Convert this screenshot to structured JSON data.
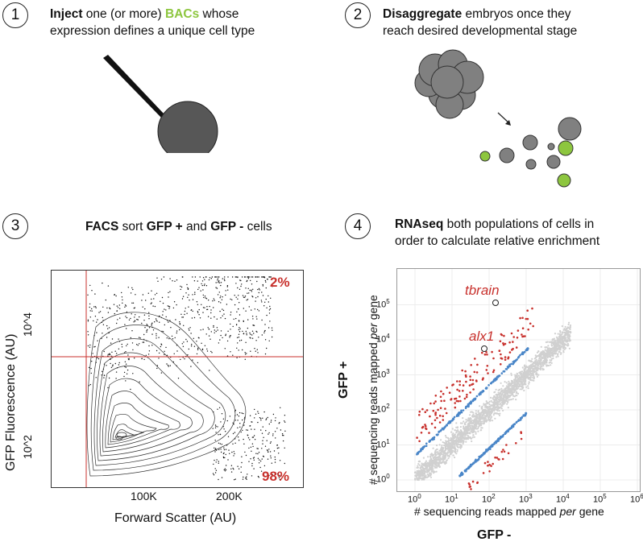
{
  "steps": [
    {
      "num": "1",
      "bold": "Inject",
      "mid": " one (or more) ",
      "accent": "BACs",
      "rest": " whose",
      "line2": "expression defines a unique cell type"
    },
    {
      "num": "2",
      "bold": "Disaggregate",
      "rest": " embryos once they",
      "line2": "reach desired developmental stage"
    },
    {
      "num": "3",
      "b1": "FACS",
      "t1": " sort ",
      "b2": "GFP +",
      "t2": " and ",
      "b3": "GFP -",
      "t3": " cells"
    },
    {
      "num": "4",
      "bold": "RNAseq",
      "rest": " both populations of cells in",
      "line2": "order to calculate relative enrichment"
    }
  ],
  "facs": {
    "ylabel": "GFP Fluorescence  (AU)",
    "xlabel": "Forward Scatter (AU)",
    "yticks": [
      "10^4",
      "10^2"
    ],
    "xticks": [
      "100K",
      "200K"
    ],
    "pct_top": "2%",
    "pct_bottom": "98%"
  },
  "rnaseq": {
    "ylabel_bold": "GFP +",
    "ylabel_pre": "# sequencing reads mapped ",
    "ylabel_it": "per",
    "ylabel_post": " gene",
    "xlabel_pre": "# sequencing reads mapped ",
    "xlabel_it": "per",
    "xlabel_post": " gene",
    "xlabel_bold": "GFP -",
    "genes": [
      "tbrain",
      "alx1"
    ],
    "ticks": [
      "10",
      "10",
      "10",
      "10",
      "10",
      "10",
      "10"
    ],
    "exps": [
      "0",
      "1",
      "2",
      "3",
      "4",
      "5",
      "6"
    ],
    "yticks": [
      "10",
      "10",
      "10",
      "10",
      "10",
      "10"
    ],
    "yexps": [
      "5",
      "4",
      "3",
      "2",
      "1",
      "0"
    ]
  },
  "colors": {
    "red": "#c8312d",
    "blue": "#4a86c8",
    "grey": "#d0d0d0",
    "green": "#8dc63f",
    "cell": "#808080"
  }
}
